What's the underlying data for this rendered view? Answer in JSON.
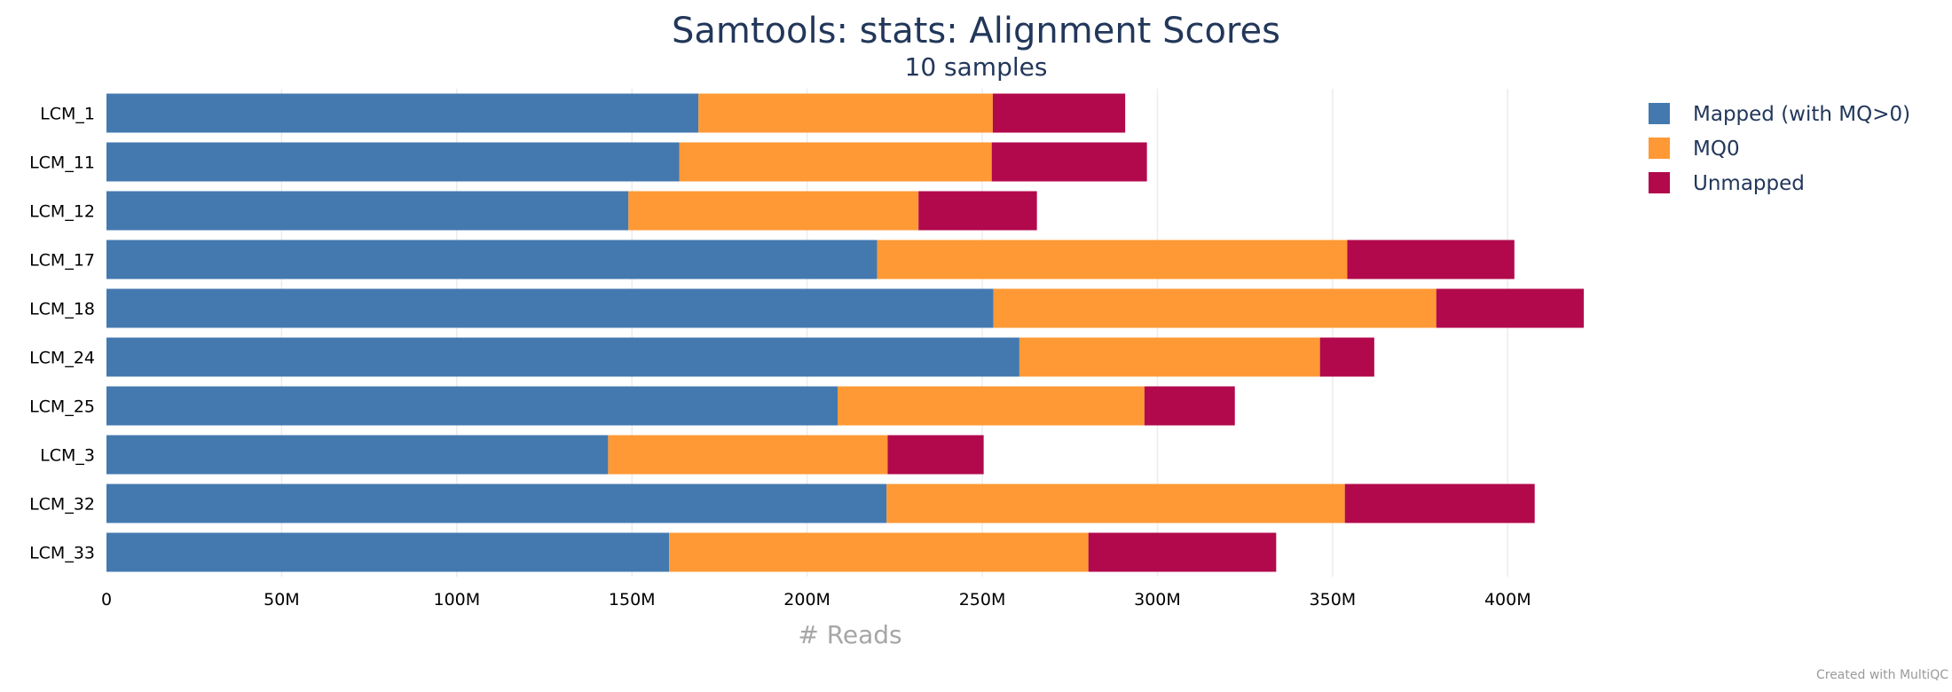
{
  "chart_data": {
    "type": "bar",
    "orientation": "horizontal",
    "stacked": true,
    "title": "Samtools: stats: Alignment Scores",
    "subtitle": "10 samples",
    "xlabel": "# Reads",
    "ylabel": "",
    "xlim": [
      0,
      425000000
    ],
    "x_ticks": [
      0,
      50000000,
      100000000,
      150000000,
      200000000,
      250000000,
      300000000,
      350000000,
      400000000
    ],
    "x_tick_labels": [
      "0",
      "50M",
      "100M",
      "150M",
      "200M",
      "250M",
      "300M",
      "350M",
      "400M"
    ],
    "grid": true,
    "legend_position": "top-right",
    "categories": [
      "LCM_1",
      "LCM_11",
      "LCM_12",
      "LCM_17",
      "LCM_18",
      "LCM_24",
      "LCM_25",
      "LCM_3",
      "LCM_32",
      "LCM_33"
    ],
    "series": [
      {
        "name": "Mapped (with MQ>0)",
        "color": "#4479b0",
        "values": [
          169000000,
          163500000,
          149000000,
          220000000,
          253200000,
          260600000,
          208700000,
          143200000,
          222700000,
          160600000
        ]
      },
      {
        "name": "MQ0",
        "color": "#fe9935",
        "values": [
          84000000,
          89200000,
          82800000,
          134200000,
          126400000,
          85800000,
          87600000,
          79800000,
          130800000,
          119700000
        ]
      },
      {
        "name": "Unmapped",
        "color": "#b2094c",
        "values": [
          37800000,
          44300000,
          33800000,
          47700000,
          42100000,
          15500000,
          25800000,
          27400000,
          54200000,
          53600000
        ]
      }
    ],
    "credit": "Created with MultiQC"
  }
}
